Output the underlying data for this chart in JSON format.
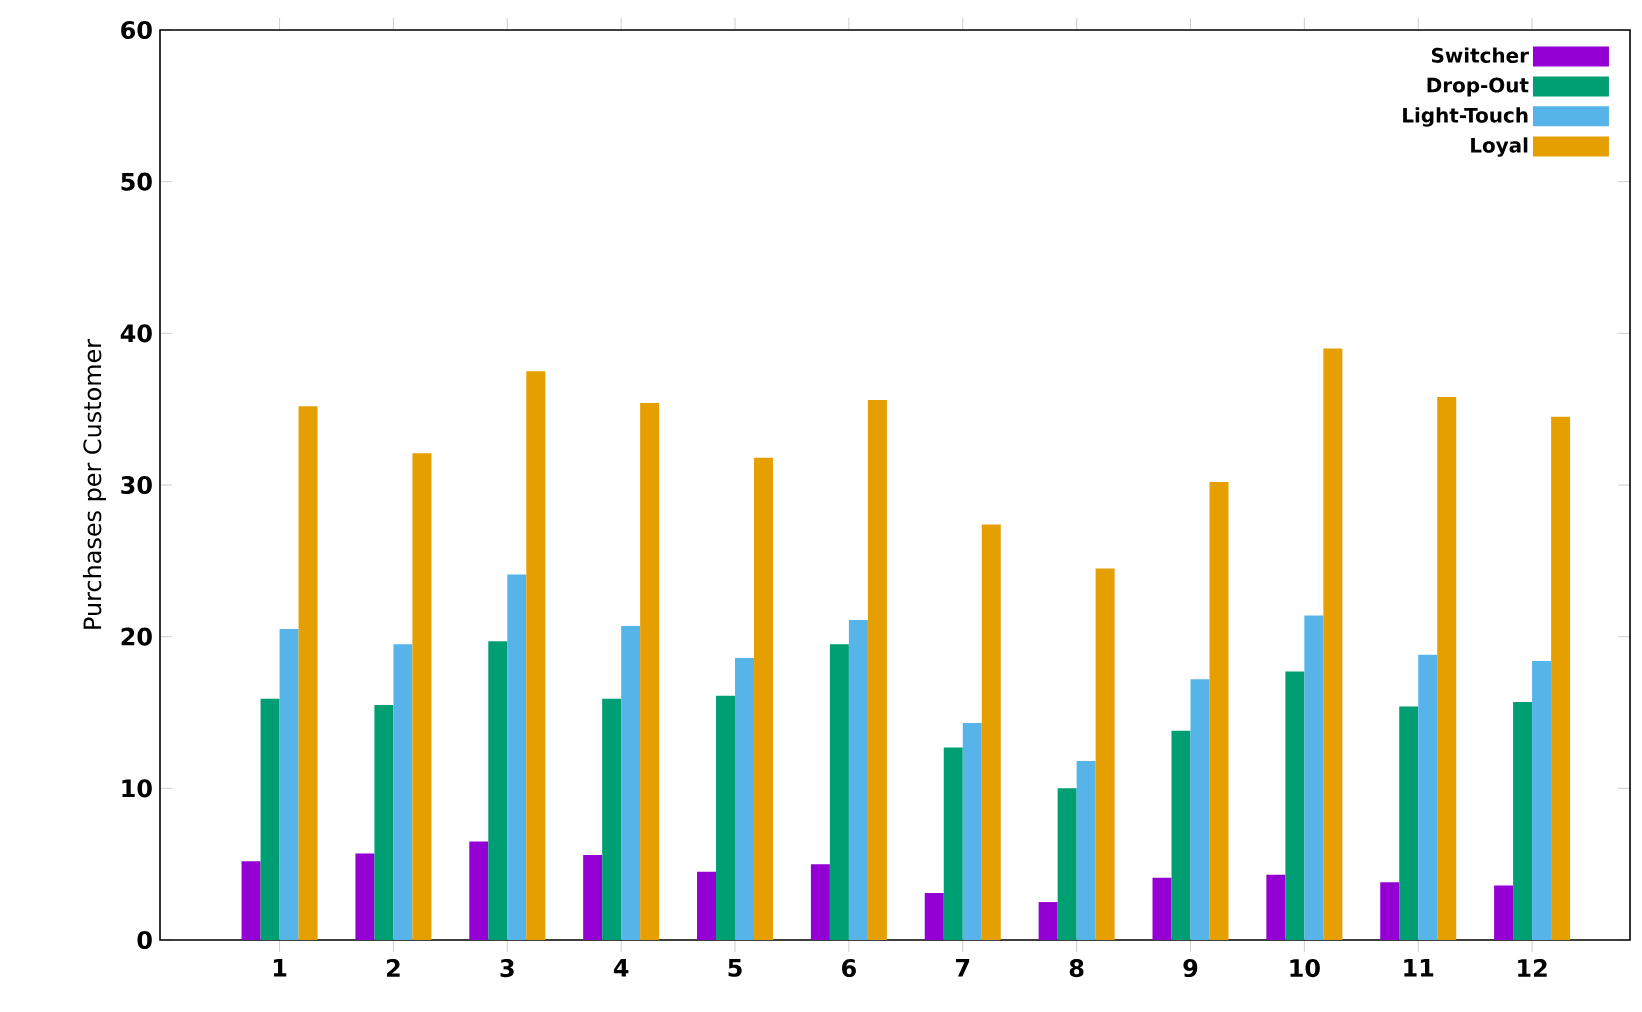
{
  "chart_data": {
    "type": "bar",
    "ylabel": "Purchases per Customer",
    "categories": [
      "1",
      "2",
      "3",
      "4",
      "5",
      "6",
      "7",
      "8",
      "9",
      "10",
      "11",
      "12"
    ],
    "series": [
      {
        "name": "Switcher",
        "color": "#9400d3",
        "values": [
          5.2,
          5.7,
          6.5,
          5.6,
          4.5,
          5.0,
          3.1,
          2.5,
          4.1,
          4.3,
          3.8,
          3.6
        ]
      },
      {
        "name": "Drop-Out",
        "color": "#009e73",
        "values": [
          15.9,
          15.5,
          19.7,
          15.9,
          16.1,
          19.5,
          12.7,
          10.0,
          13.8,
          17.7,
          15.4,
          15.7
        ]
      },
      {
        "name": "Light-Touch",
        "color": "#56b4e9",
        "values": [
          20.5,
          19.5,
          24.1,
          20.7,
          18.6,
          21.1,
          14.3,
          11.8,
          17.2,
          21.4,
          18.8,
          18.4
        ]
      },
      {
        "name": "Loyal",
        "color": "#e69f00",
        "values": [
          35.2,
          32.1,
          37.5,
          35.4,
          31.8,
          35.6,
          27.4,
          24.5,
          30.2,
          39.0,
          35.8,
          34.5
        ]
      }
    ],
    "ylim": [
      0,
      60
    ],
    "yticks": [
      0,
      10,
      20,
      30,
      40,
      50,
      60
    ],
    "legend": "top right"
  }
}
